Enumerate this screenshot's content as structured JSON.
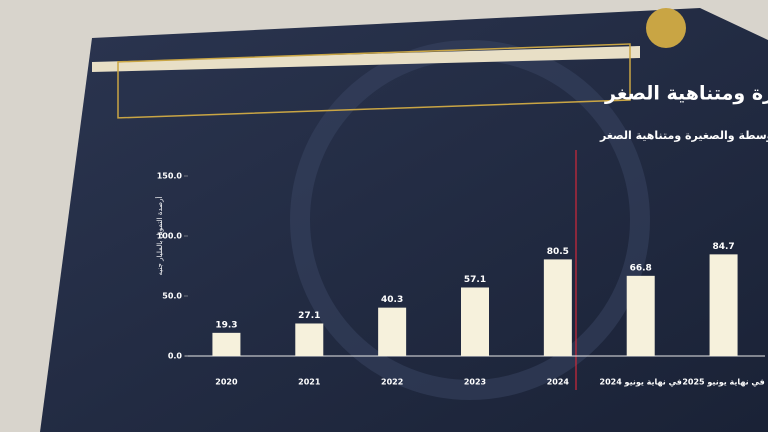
{
  "chart_data": {
    "type": "bar",
    "title": "نشاط تمويل المشروعات المتوسطة والصغيرة ومتناهية الصغر",
    "subtitle": "أرصدة تمويل المشروعات المتوسطة والصغيرة ومتناهية الصغر",
    "y_label": "أرصدة التمويل بالمليار جنيه",
    "categories": [
      "2020",
      "2021",
      "2022",
      "2023",
      "2024",
      "في نهاية يونيو 2024",
      "في نهاية يونيو 2025"
    ],
    "values": [
      19.3,
      27.1,
      40.3,
      57.1,
      80.5,
      66.8,
      84.7
    ],
    "color": "#f6f1dc",
    "ylim": [
      0,
      150
    ],
    "yticks": [
      {
        "value": 0,
        "label": "0.0"
      },
      {
        "value": 50,
        "label": "50.0"
      },
      {
        "value": 100,
        "label": "100.0"
      },
      {
        "value": 150,
        "label": "150.0"
      }
    ],
    "grid": false
  }
}
